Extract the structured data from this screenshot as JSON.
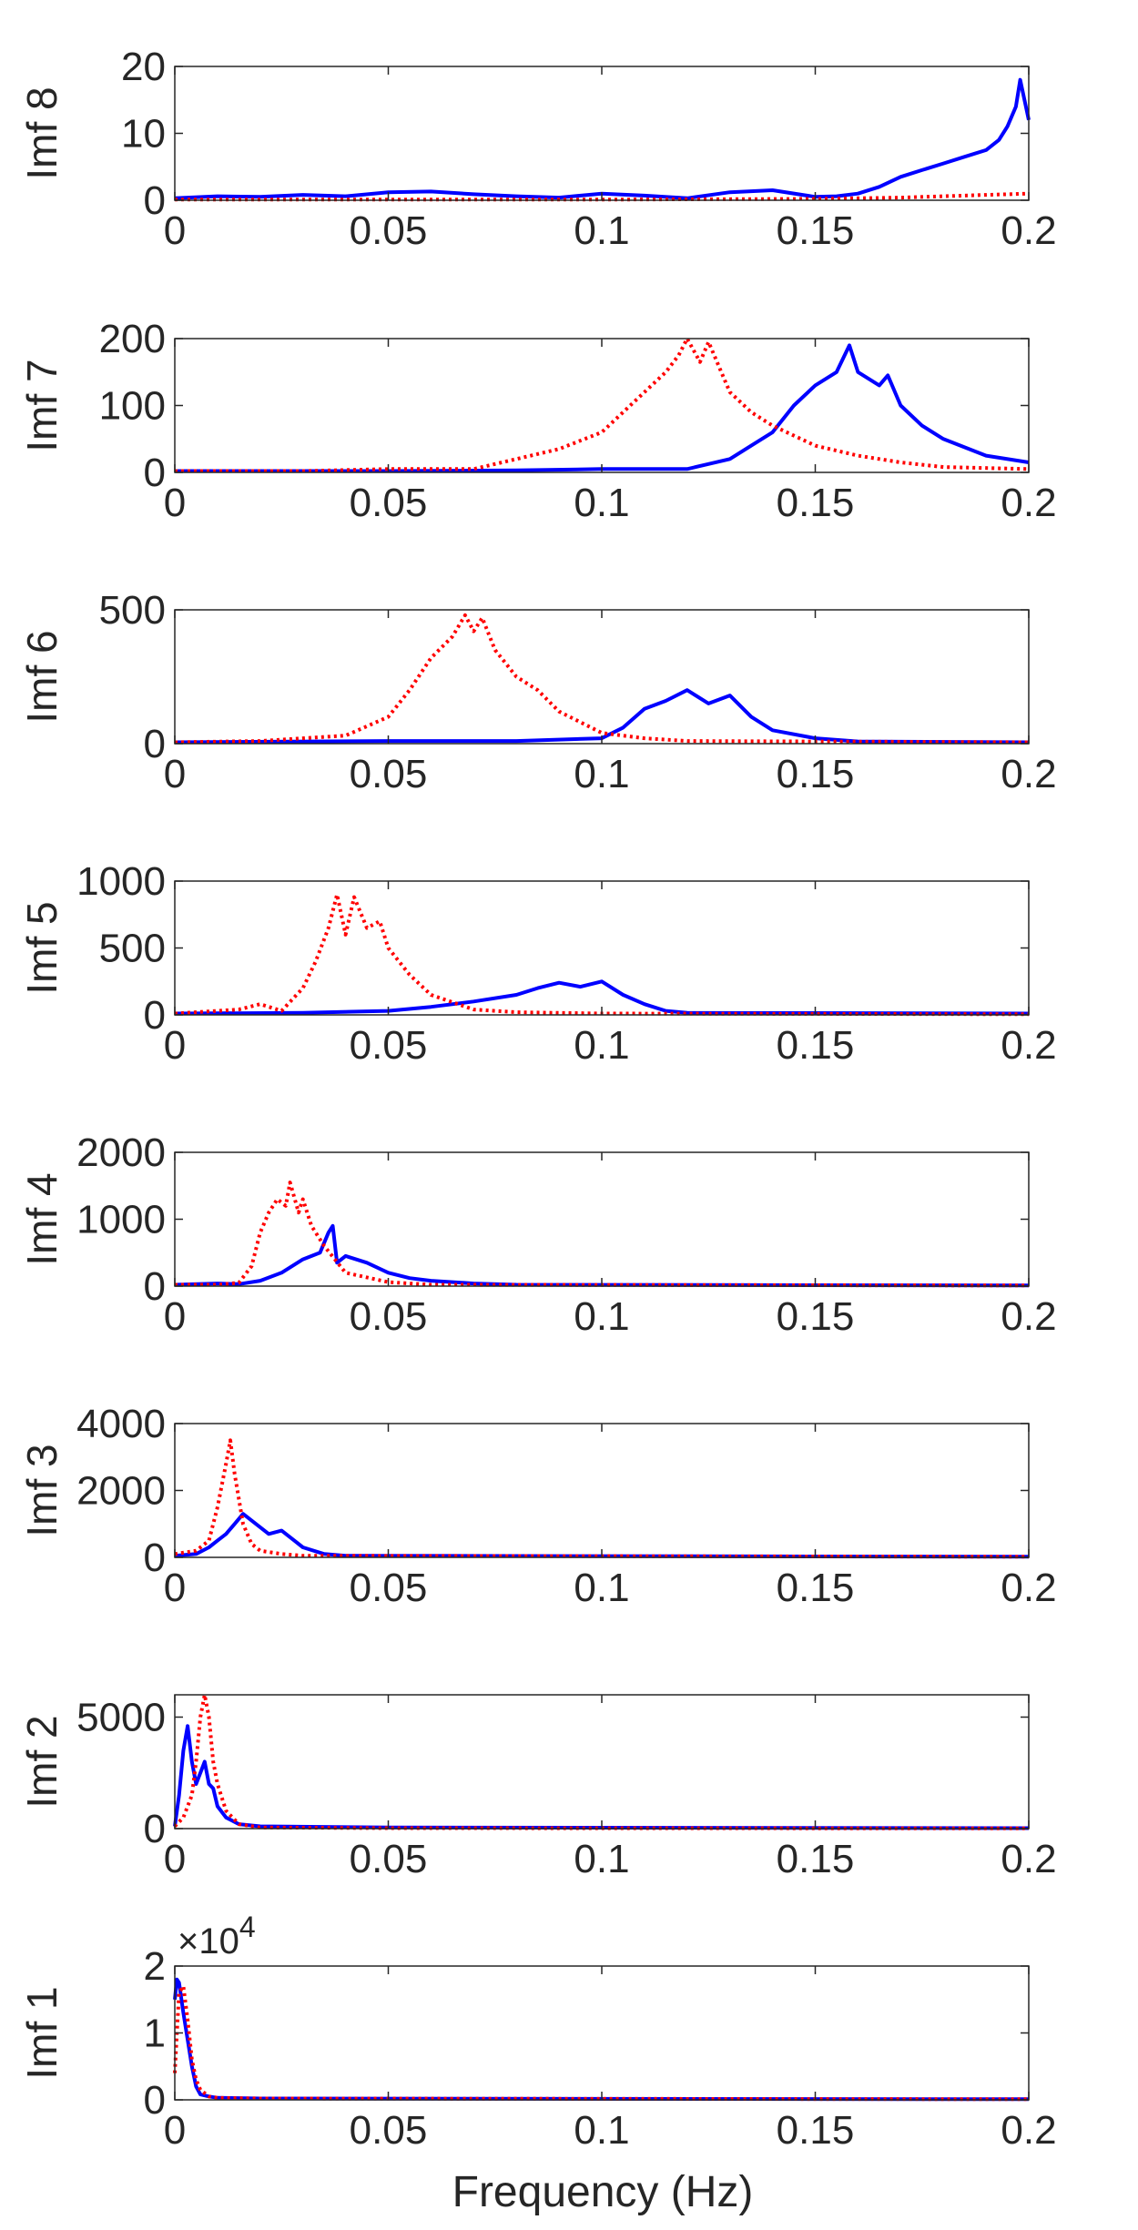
{
  "figure": {
    "xlabel": "Frequency (Hz)",
    "series_colors": {
      "red_dotted": "#ff0000",
      "blue_solid": "#0000ff"
    }
  },
  "chart_data": [
    {
      "type": "line",
      "ylabel": "Imf 8",
      "xlim": [
        0,
        0.2
      ],
      "ylim": [
        0,
        20
      ],
      "xticks": [
        0,
        0.05,
        0.1,
        0.15,
        0.2
      ],
      "xtick_labels": [
        "0",
        "0.05",
        "0.1",
        "0.15",
        "0.2"
      ],
      "yticks": [
        0,
        10,
        20
      ],
      "ytick_labels": [
        "0",
        "10",
        "20"
      ],
      "exponent_label": "",
      "series": [
        {
          "style": "red-dotted",
          "color": "#ff0000",
          "x": [
            0,
            0.05,
            0.1,
            0.15,
            0.17,
            0.19,
            0.2
          ],
          "y": [
            0.1,
            0.1,
            0.1,
            0.2,
            0.4,
            0.8,
            1
          ]
        },
        {
          "style": "blue-solid",
          "color": "#0000ff",
          "x": [
            0,
            0.01,
            0.02,
            0.03,
            0.04,
            0.05,
            0.06,
            0.07,
            0.08,
            0.09,
            0.1,
            0.11,
            0.12,
            0.13,
            0.14,
            0.15,
            0.155,
            0.16,
            0.165,
            0.17,
            0.175,
            0.18,
            0.185,
            0.19,
            0.193,
            0.195,
            0.197,
            0.198,
            0.2
          ],
          "y": [
            0.3,
            0.6,
            0.5,
            0.8,
            0.6,
            1.2,
            1.3,
            0.9,
            0.6,
            0.4,
            1.0,
            0.7,
            0.3,
            1.2,
            1.5,
            0.5,
            0.6,
            1.0,
            2.0,
            3.5,
            4.5,
            5.5,
            6.5,
            7.5,
            9,
            11,
            14,
            18,
            12
          ]
        }
      ]
    },
    {
      "type": "line",
      "ylabel": "Imf 7",
      "xlim": [
        0,
        0.2
      ],
      "ylim": [
        0,
        200
      ],
      "xticks": [
        0,
        0.05,
        0.1,
        0.15,
        0.2
      ],
      "xtick_labels": [
        "0",
        "0.05",
        "0.1",
        "0.15",
        "0.2"
      ],
      "yticks": [
        0,
        100,
        200
      ],
      "ytick_labels": [
        "0",
        "100",
        "200"
      ],
      "exponent_label": "",
      "series": [
        {
          "style": "red-dotted",
          "color": "#ff0000",
          "x": [
            0,
            0.03,
            0.05,
            0.07,
            0.08,
            0.09,
            0.1,
            0.105,
            0.11,
            0.115,
            0.118,
            0.12,
            0.123,
            0.125,
            0.128,
            0.13,
            0.135,
            0.14,
            0.145,
            0.15,
            0.16,
            0.17,
            0.18,
            0.2
          ],
          "y": [
            2,
            2,
            5,
            5,
            20,
            35,
            60,
            90,
            120,
            150,
            175,
            200,
            165,
            195,
            150,
            120,
            90,
            70,
            55,
            40,
            25,
            15,
            8,
            5
          ]
        },
        {
          "style": "blue-solid",
          "color": "#0000ff",
          "x": [
            0,
            0.05,
            0.08,
            0.1,
            0.12,
            0.13,
            0.135,
            0.14,
            0.145,
            0.15,
            0.155,
            0.158,
            0.16,
            0.165,
            0.167,
            0.17,
            0.175,
            0.18,
            0.19,
            0.2
          ],
          "y": [
            2,
            2,
            3,
            5,
            5,
            20,
            40,
            60,
            100,
            130,
            150,
            190,
            150,
            130,
            145,
            100,
            70,
            50,
            25,
            15
          ]
        }
      ]
    },
    {
      "type": "line",
      "ylabel": "Imf 6",
      "xlim": [
        0,
        0.2
      ],
      "ylim": [
        0,
        500
      ],
      "xticks": [
        0,
        0.05,
        0.1,
        0.15,
        0.2
      ],
      "xtick_labels": [
        "0",
        "0.05",
        "0.1",
        "0.15",
        "0.2"
      ],
      "yticks": [
        0,
        500
      ],
      "ytick_labels": [
        "0",
        "500"
      ],
      "exponent_label": "",
      "series": [
        {
          "style": "red-dotted",
          "color": "#ff0000",
          "x": [
            0,
            0.02,
            0.03,
            0.04,
            0.05,
            0.055,
            0.06,
            0.065,
            0.068,
            0.07,
            0.072,
            0.075,
            0.08,
            0.085,
            0.09,
            0.1,
            0.11,
            0.12,
            0.2
          ],
          "y": [
            5,
            10,
            20,
            30,
            100,
            200,
            320,
            400,
            480,
            420,
            470,
            350,
            250,
            200,
            120,
            40,
            20,
            10,
            5
          ]
        },
        {
          "style": "blue-solid",
          "color": "#0000ff",
          "x": [
            0,
            0.05,
            0.08,
            0.1,
            0.105,
            0.11,
            0.115,
            0.12,
            0.125,
            0.13,
            0.135,
            0.14,
            0.15,
            0.16,
            0.2
          ],
          "y": [
            5,
            10,
            10,
            20,
            60,
            130,
            160,
            200,
            150,
            180,
            100,
            50,
            20,
            8,
            5
          ]
        }
      ]
    },
    {
      "type": "line",
      "ylabel": "Imf 5",
      "xlim": [
        0,
        0.2
      ],
      "ylim": [
        0,
        1000
      ],
      "xticks": [
        0,
        0.05,
        0.1,
        0.15,
        0.2
      ],
      "xtick_labels": [
        "0",
        "0.05",
        "0.1",
        "0.15",
        "0.2"
      ],
      "yticks": [
        0,
        500,
        1000
      ],
      "ytick_labels": [
        "0",
        "500",
        "1000"
      ],
      "exponent_label": "",
      "series": [
        {
          "style": "red-dotted",
          "color": "#ff0000",
          "x": [
            0,
            0.015,
            0.02,
            0.025,
            0.03,
            0.033,
            0.036,
            0.038,
            0.04,
            0.042,
            0.045,
            0.048,
            0.05,
            0.055,
            0.06,
            0.07,
            0.08,
            0.1,
            0.2
          ],
          "y": [
            10,
            40,
            80,
            30,
            200,
            400,
            650,
            900,
            600,
            880,
            650,
            700,
            500,
            300,
            150,
            40,
            20,
            10,
            5
          ]
        },
        {
          "style": "blue-solid",
          "color": "#0000ff",
          "x": [
            0,
            0.03,
            0.05,
            0.06,
            0.07,
            0.08,
            0.085,
            0.09,
            0.095,
            0.1,
            0.105,
            0.11,
            0.115,
            0.12,
            0.2
          ],
          "y": [
            10,
            15,
            30,
            60,
            100,
            150,
            200,
            240,
            210,
            250,
            150,
            80,
            30,
            15,
            10
          ]
        }
      ]
    },
    {
      "type": "line",
      "ylabel": "Imf 4",
      "xlim": [
        0,
        0.2
      ],
      "ylim": [
        0,
        2000
      ],
      "xticks": [
        0,
        0.05,
        0.1,
        0.15,
        0.2
      ],
      "xtick_labels": [
        "0",
        "0.05",
        "0.1",
        "0.15",
        "0.2"
      ],
      "yticks": [
        0,
        1000,
        2000
      ],
      "ytick_labels": [
        "0",
        "1000",
        "2000"
      ],
      "exponent_label": "",
      "series": [
        {
          "style": "red-dotted",
          "color": "#ff0000",
          "x": [
            0,
            0.01,
            0.015,
            0.018,
            0.02,
            0.022,
            0.024,
            0.026,
            0.027,
            0.029,
            0.03,
            0.032,
            0.035,
            0.04,
            0.05,
            0.06,
            0.2
          ],
          "y": [
            20,
            20,
            50,
            300,
            800,
            1100,
            1300,
            1200,
            1550,
            1100,
            1300,
            900,
            600,
            200,
            60,
            20,
            10
          ]
        },
        {
          "style": "blue-solid",
          "color": "#0000ff",
          "x": [
            0,
            0.01,
            0.015,
            0.02,
            0.025,
            0.03,
            0.034,
            0.036,
            0.037,
            0.038,
            0.04,
            0.045,
            0.05,
            0.055,
            0.06,
            0.07,
            0.08,
            0.2
          ],
          "y": [
            20,
            40,
            30,
            80,
            200,
            400,
            500,
            800,
            900,
            350,
            450,
            350,
            200,
            120,
            80,
            40,
            20,
            10
          ]
        }
      ]
    },
    {
      "type": "line",
      "ylabel": "Imf 3",
      "xlim": [
        0,
        0.2
      ],
      "ylim": [
        0,
        4000
      ],
      "xticks": [
        0,
        0.05,
        0.1,
        0.15,
        0.2
      ],
      "xtick_labels": [
        "0",
        "0.05",
        "0.1",
        "0.15",
        "0.2"
      ],
      "yticks": [
        0,
        2000,
        4000
      ],
      "ytick_labels": [
        "0",
        "2000",
        "4000"
      ],
      "exponent_label": "",
      "series": [
        {
          "style": "red-dotted",
          "color": "#ff0000",
          "x": [
            0,
            0.005,
            0.008,
            0.01,
            0.012,
            0.013,
            0.014,
            0.016,
            0.018,
            0.02,
            0.025,
            0.03,
            0.2
          ],
          "y": [
            100,
            200,
            500,
            1500,
            2800,
            3500,
            2500,
            1000,
            400,
            200,
            100,
            50,
            20
          ]
        },
        {
          "style": "blue-solid",
          "color": "#0000ff",
          "x": [
            0,
            0.005,
            0.008,
            0.01,
            0.012,
            0.014,
            0.016,
            0.018,
            0.02,
            0.022,
            0.025,
            0.028,
            0.03,
            0.035,
            0.04,
            0.2
          ],
          "y": [
            50,
            100,
            300,
            500,
            700,
            1000,
            1300,
            1100,
            900,
            700,
            800,
            500,
            300,
            100,
            50,
            20
          ]
        }
      ]
    },
    {
      "type": "line",
      "ylabel": "Imf 2",
      "xlim": [
        0,
        0.2
      ],
      "ylim": [
        0,
        6000
      ],
      "xticks": [
        0,
        0.05,
        0.1,
        0.15,
        0.2
      ],
      "xtick_labels": [
        "0",
        "0.05",
        "0.1",
        "0.15",
        "0.2"
      ],
      "yticks": [
        0,
        5000
      ],
      "ytick_labels": [
        "0",
        "5000"
      ],
      "exponent_label": "",
      "series": [
        {
          "style": "red-dotted",
          "color": "#ff0000",
          "x": [
            0,
            0.002,
            0.004,
            0.005,
            0.006,
            0.007,
            0.008,
            0.009,
            0.01,
            0.012,
            0.015,
            0.02,
            0.05,
            0.2
          ],
          "y": [
            100,
            500,
            1500,
            3000,
            5000,
            6000,
            5000,
            3000,
            2000,
            800,
            200,
            50,
            20,
            10
          ]
        },
        {
          "style": "blue-solid",
          "color": "#0000ff",
          "x": [
            0,
            0.001,
            0.002,
            0.003,
            0.004,
            0.005,
            0.006,
            0.007,
            0.008,
            0.009,
            0.01,
            0.012,
            0.015,
            0.02,
            0.05,
            0.2
          ],
          "y": [
            100,
            1500,
            3500,
            4600,
            3000,
            2000,
            2500,
            3000,
            2000,
            1800,
            1000,
            500,
            200,
            100,
            50,
            20
          ]
        }
      ]
    },
    {
      "type": "line",
      "ylabel": "Imf 1",
      "xlim": [
        0,
        0.2
      ],
      "ylim": [
        0,
        2
      ],
      "xticks": [
        0,
        0.05,
        0.1,
        0.15,
        0.2
      ],
      "xtick_labels": [
        "0",
        "0.05",
        "0.1",
        "0.15",
        "0.2"
      ],
      "yticks": [
        0,
        1,
        2
      ],
      "ytick_labels": [
        "0",
        "1",
        "2"
      ],
      "exponent_label": "×10^4",
      "exponent_base": "×10",
      "exponent_power": "4",
      "series": [
        {
          "style": "red-dotted",
          "color": "#ff0000",
          "x": [
            0,
            0.0005,
            0.001,
            0.002,
            0.003,
            0.004,
            0.005,
            0.006,
            0.008,
            0.01,
            0.02,
            0.2
          ],
          "y": [
            0.4,
            1.0,
            1.6,
            1.7,
            1.2,
            0.6,
            0.3,
            0.15,
            0.05,
            0.03,
            0.02,
            0.01
          ]
        },
        {
          "style": "blue-solid",
          "color": "#0000ff",
          "x": [
            0,
            0.0005,
            0.001,
            0.002,
            0.003,
            0.004,
            0.005,
            0.006,
            0.008,
            0.01,
            0.02,
            0.2
          ],
          "y": [
            1.5,
            1.8,
            1.75,
            1.3,
            0.9,
            0.5,
            0.2,
            0.08,
            0.05,
            0.03,
            0.02,
            0.01
          ]
        }
      ]
    }
  ]
}
